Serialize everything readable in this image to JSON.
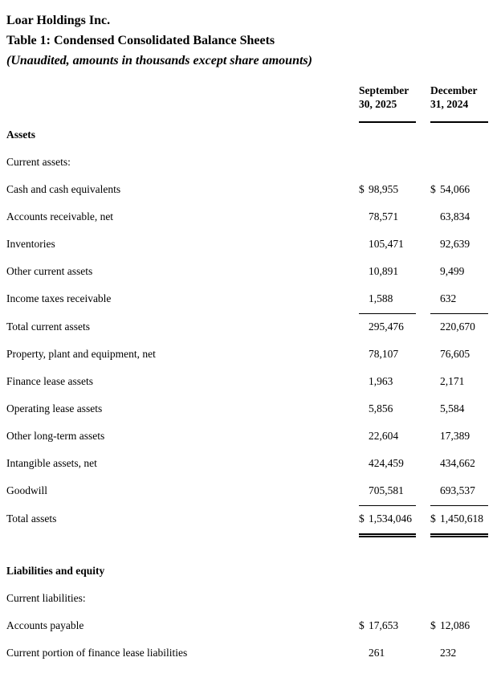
{
  "header": {
    "company": "Loar Holdings Inc.",
    "table_title": "Table 1: Condensed Consolidated Balance Sheets",
    "subtitle": "(Unaudited, amounts in thousands except share amounts)"
  },
  "table": {
    "columns": [
      "September 30, 2025",
      "December 31, 2024"
    ],
    "currency_symbol": "$",
    "rows": [
      {
        "label": "Assets"
      },
      {
        "label": "Current assets:"
      },
      {
        "label": "Cash and cash equivalents",
        "d1": "$",
        "v1": "98,955",
        "d2": "$",
        "v2": "54,066"
      },
      {
        "label": "Accounts receivable, net",
        "v1": "78,571",
        "v2": "63,834"
      },
      {
        "label": "Inventories",
        "v1": "105,471",
        "v2": "92,639"
      },
      {
        "label": "Other current assets",
        "v1": "10,891",
        "v2": "9,499"
      },
      {
        "label": "Income taxes receivable",
        "v1": "1,588",
        "v2": "632"
      },
      {
        "label": "Total current assets",
        "v1": "295,476",
        "v2": "220,670"
      },
      {
        "label": "Property, plant and equipment, net",
        "v1": "78,107",
        "v2": "76,605"
      },
      {
        "label": "Finance lease assets",
        "v1": "1,963",
        "v2": "2,171"
      },
      {
        "label": "Operating lease assets",
        "v1": "5,856",
        "v2": "5,584"
      },
      {
        "label": "Other long-term assets",
        "v1": "22,604",
        "v2": "17,389"
      },
      {
        "label": "Intangible assets, net",
        "v1": "424,459",
        "v2": "434,662"
      },
      {
        "label": "Goodwill",
        "v1": "705,581",
        "v2": "693,537"
      },
      {
        "label": "Total assets",
        "d1": "$",
        "v1": "1,534,046",
        "d2": "$",
        "v2": "1,450,618"
      },
      {
        "label": "Liabilities and equity"
      },
      {
        "label": "Current liabilities:"
      },
      {
        "label": "Accounts payable",
        "d1": "$",
        "v1": "17,653",
        "d2": "$",
        "v2": "12,086"
      },
      {
        "label": "Current portion of finance lease liabilities",
        "v1": "261",
        "v2": "232"
      }
    ]
  }
}
